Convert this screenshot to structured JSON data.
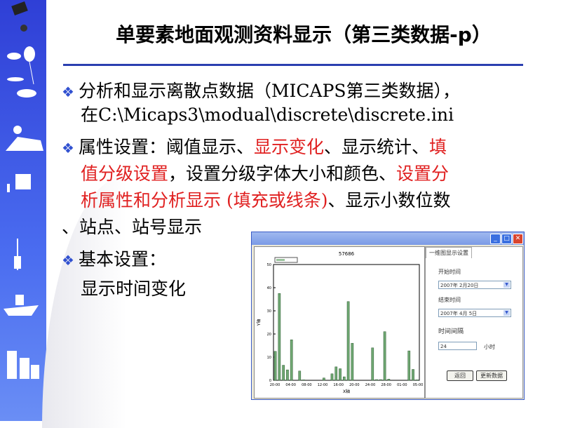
{
  "slide": {
    "title": "单要素地面观测资料显示（第三类数据-p）",
    "bullets": [
      {
        "lines": [
          "分析和显示离散点数据（MICAPS第三类数据），",
          "在C:\\Micaps3\\modual\\discrete\\discrete.ini"
        ]
      },
      {
        "parts": [
          "属性设置：阈值显示、",
          "显示变化",
          "、显示统计、",
          "填",
          "值分级设置",
          "，设置分级字体大小和颜色、",
          "设置分",
          "析属性和分析显示 (填充或线条)",
          "、显示小数位数",
          "、站点、站号显示"
        ]
      },
      {
        "lines": [
          "基本设置：",
          "显示时间变化"
        ]
      }
    ],
    "accent_red": "#e02020",
    "accent_blue": "#2b3fb0",
    "bullet_icon": "diamond-bullet-icon"
  },
  "window": {
    "buttons": [
      "minimize",
      "maximize",
      "close"
    ],
    "panel": {
      "tab": "一维图显示设置",
      "start_label": "开始时间",
      "start_value": "2007年 2月20日",
      "end_label": "结束时间",
      "end_value": "2007年 4月 5日",
      "interval_label": "时间间隔",
      "interval_value": "24",
      "interval_unit": "小时",
      "return_button": "返回",
      "update_button": "更新数据"
    }
  },
  "chart_data": {
    "type": "bar",
    "title": "57686",
    "xlabel": "X轴",
    "ylabel": "Y轴",
    "ylim": [
      0,
      50
    ],
    "yticks": [
      0,
      10,
      20,
      30,
      40,
      50
    ],
    "xtick_labels": [
      "20-00",
      "04-00",
      "08-00",
      "12-00",
      "16-00",
      "20-00",
      "24-00",
      "28-00",
      "01-00",
      "05-00"
    ],
    "values": [
      12.5,
      37.5,
      6.5,
      4.5,
      17.5,
      0,
      4,
      0.2,
      0,
      0,
      0,
      0,
      1,
      0,
      2.8,
      5.8,
      5,
      1.5,
      34,
      16,
      0,
      0,
      0,
      0,
      14,
      0.3,
      0.3,
      21,
      0.5,
      0,
      0,
      0,
      0,
      12.7,
      4.7,
      0.2
    ],
    "bar_color": "#6fa872",
    "legend": "top-left",
    "grid": false
  }
}
